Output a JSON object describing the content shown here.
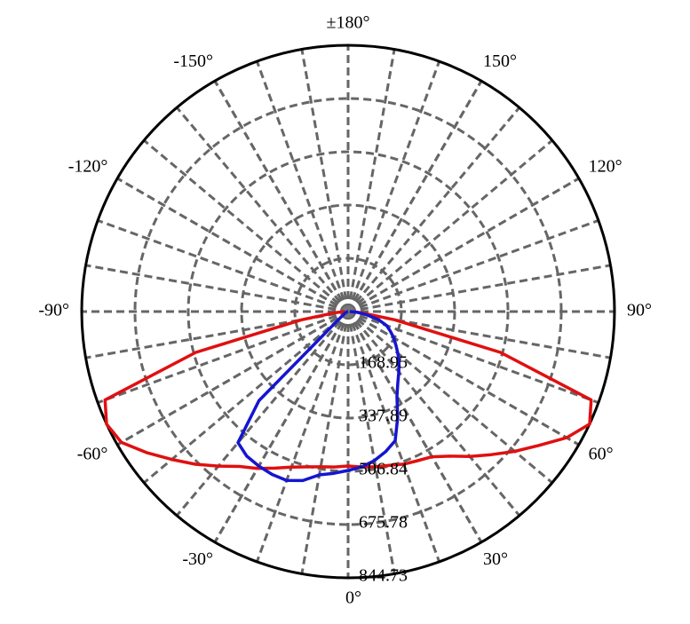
{
  "chart_data": {
    "type": "polar",
    "x": [
      -90,
      -85,
      -80,
      -75,
      -70,
      -65,
      -60,
      -55,
      -50,
      -45,
      -40,
      -35,
      -30,
      -25,
      -20,
      -15,
      -10,
      -5,
      0,
      5,
      10,
      15,
      20,
      25,
      30,
      35,
      40,
      45,
      50,
      55,
      60,
      65,
      70,
      75,
      80,
      85,
      90
    ],
    "series": [
      {
        "color": "#e01010",
        "values": [
          10,
          40,
          150,
          500,
          820,
          845,
          830,
          780,
          730,
          685,
          640,
          600,
          575,
          548,
          525,
          510,
          500,
          495,
          490,
          495,
          500,
          505,
          515,
          522,
          532,
          560,
          600,
          642,
          690,
          740,
          800,
          845,
          820,
          500,
          150,
          40,
          10
        ]
      },
      {
        "color": "#1515d0",
        "values": [
          0,
          0,
          2,
          3,
          5,
          8,
          12,
          20,
          40,
          400,
          543,
          560,
          566,
          570,
          570,
          555,
          526,
          515,
          504,
          495,
          480,
          460,
          436,
          372,
          310,
          275,
          250,
          228,
          206,
          185,
          167,
          148,
          130,
          100,
          60,
          30,
          5
        ]
      }
    ],
    "rlim": [
      0,
      844.73
    ],
    "rticks": [
      168.95,
      337.89,
      506.84,
      675.78,
      844.73
    ],
    "thetaticks": [
      {
        "value": 0,
        "label": "0°"
      },
      {
        "value": 30,
        "label": "30°"
      },
      {
        "value": 60,
        "label": "60°"
      },
      {
        "value": 90,
        "label": "90°"
      },
      {
        "value": 120,
        "label": "120°"
      },
      {
        "value": 150,
        "label": "150°"
      },
      {
        "value": 180,
        "label": "±180°"
      },
      {
        "value": -150,
        "label": "-150°"
      },
      {
        "value": -120,
        "label": "-120°"
      },
      {
        "value": -90,
        "label": "-90°"
      },
      {
        "value": -60,
        "label": "-60°"
      },
      {
        "value": -30,
        "label": "-30°"
      }
    ],
    "grid": true
  }
}
